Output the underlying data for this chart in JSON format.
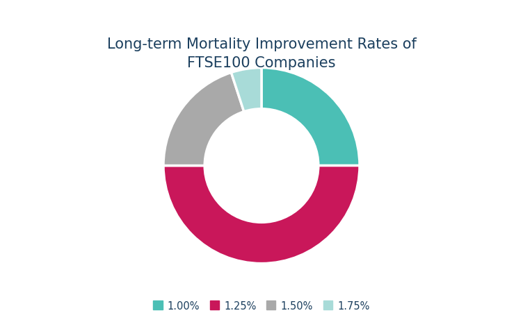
{
  "title": "Long-term Mortality Improvement Rates of\nFTSE100 Companies",
  "title_color": "#1b3f5e",
  "title_fontsize": 15,
  "labels": [
    "1.00%",
    "1.25%",
    "1.50%",
    "1.75%"
  ],
  "values": [
    25,
    50,
    20,
    5
  ],
  "colors": [
    "#4bbfb5",
    "#c9175a",
    "#a9a9a9",
    "#a8dbd8"
  ],
  "donut_width": 0.42,
  "legend_text_color": "#1b3f5e",
  "legend_fontsize": 10.5,
  "background_color": "#ffffff",
  "startangle": 90,
  "figsize": [
    7.52,
    4.52
  ]
}
